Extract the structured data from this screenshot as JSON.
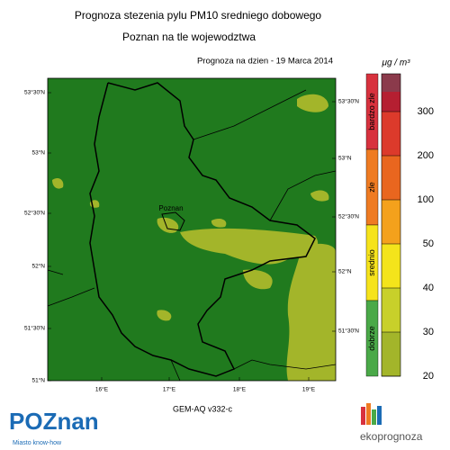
{
  "header": {
    "title": "Prognoza stezenia pylu PM10 sredniego dobowego",
    "subtitle": "Poznan na tle wojewodztwa",
    "forecast": "Prognoza na dzien -  19 Marca 2014"
  },
  "map": {
    "lat_left": [
      "53°30'N",
      "53°N",
      "52°30'N",
      "52°N",
      "51°30'N",
      "51°N"
    ],
    "lat_right": [
      "53°30'N",
      "53°N",
      "52°30'N",
      "52°N",
      "51°30'N"
    ],
    "lon": [
      "16°E",
      "17°E",
      "18°E",
      "19°E"
    ],
    "city": "Poznan",
    "model": "GEM-AQ v332-c",
    "background": "#207a1e",
    "patch": "#a3b52a"
  },
  "legend": {
    "unit": "μg / m³",
    "categories": [
      {
        "label": "bardzo zle",
        "color": "#d8323e"
      },
      {
        "label": "zle",
        "color": "#ef7b22"
      },
      {
        "label": "srednio",
        "color": "#f6e31c"
      },
      {
        "label": "dobrze",
        "color": "#4aa948"
      }
    ],
    "thresholds": [
      300,
      200,
      100,
      50,
      40,
      30,
      20
    ],
    "bins": [
      "#8b3a4b",
      "#b51f31",
      "#dc3a2b",
      "#e9661f",
      "#f4a11c",
      "#f4e41b",
      "#c8d02a",
      "#a3b52a",
      "#207a1e"
    ]
  },
  "footer": {
    "logo": "POZnan",
    "tagline": "Miasto know-how",
    "brand": "ekoprognoza"
  }
}
